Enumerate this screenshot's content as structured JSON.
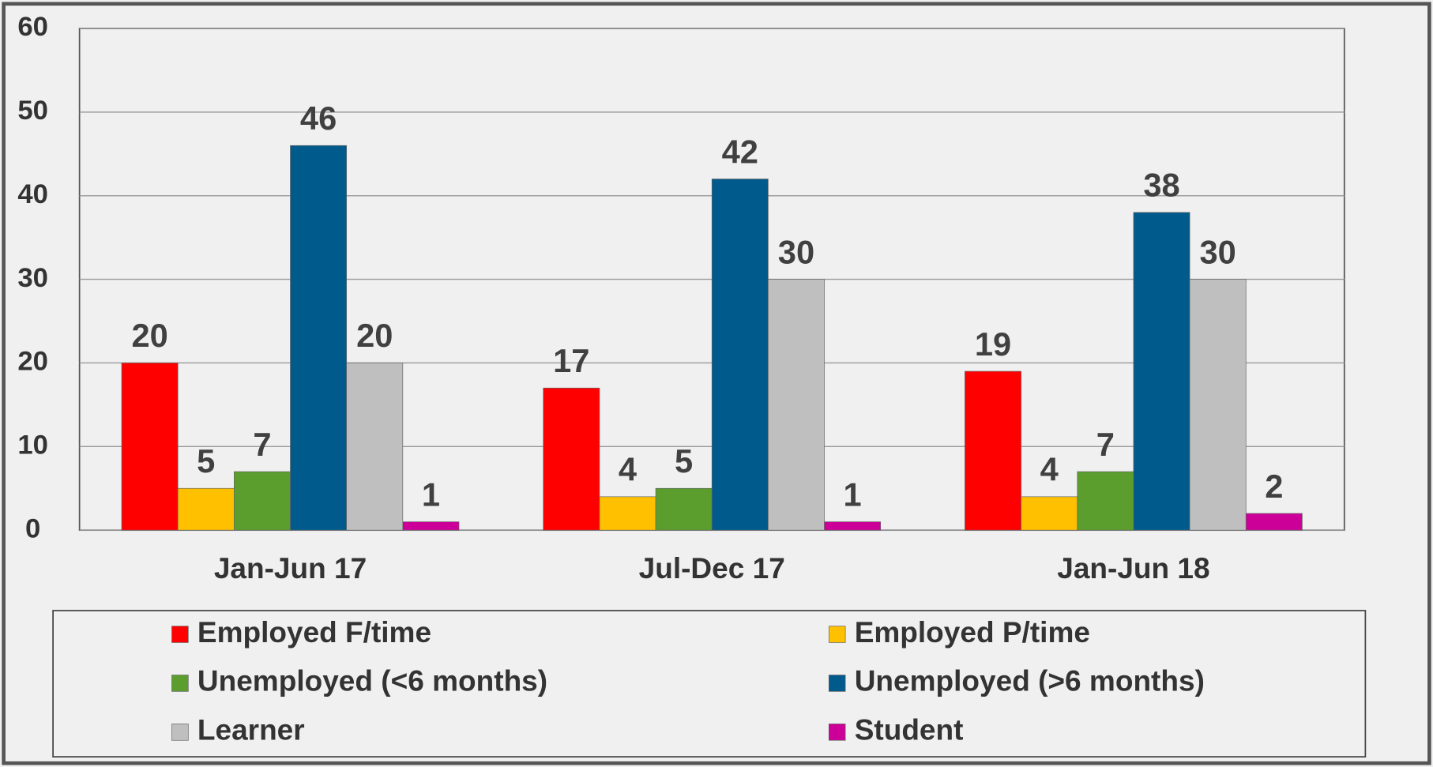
{
  "chart_data": {
    "type": "bar",
    "categories": [
      "Jan-Jun 17",
      "Jul-Dec 17",
      "Jan-Jun 18"
    ],
    "series": [
      {
        "name": "Employed F/time",
        "color": "#ff0000",
        "values": [
          20,
          17,
          19
        ]
      },
      {
        "name": "Employed P/time",
        "color": "#ffc000",
        "values": [
          5,
          4,
          4
        ]
      },
      {
        "name": "Unemployed (<6 months)",
        "color": "#5b9e2d",
        "values": [
          7,
          5,
          7
        ]
      },
      {
        "name": "Unemployed (>6 months)",
        "color": "#005a8c",
        "values": [
          46,
          42,
          38
        ]
      },
      {
        "name": "Learner",
        "color": "#bfbfbf",
        "values": [
          20,
          30,
          30
        ]
      },
      {
        "name": "Student",
        "color": "#cc0099",
        "values": [
          1,
          1,
          2
        ]
      }
    ],
    "ylim": [
      0,
      60
    ],
    "yticks": [
      0,
      10,
      20,
      30,
      40,
      50,
      60
    ],
    "grid": true,
    "legend": "bottom"
  }
}
